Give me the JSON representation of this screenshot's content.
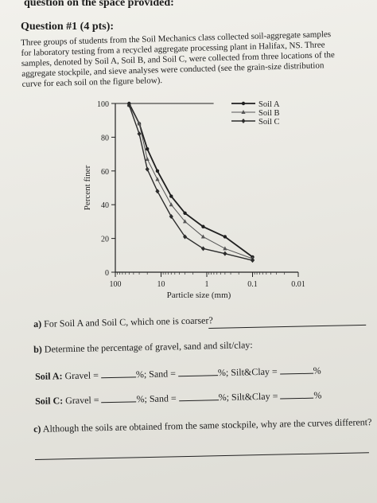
{
  "header": "question on the space provided:",
  "question_title": "Question #1 (4 pts):",
  "intro_lines": [
    "Three groups of students from the Soil Mechanics class collected soil-aggregate samples",
    "for laboratory testing from a recycled aggregate processing plant in Halifax, NS. Three",
    "samples, denoted by Soil A, Soil B, and Soil C, were collected from three locations of the",
    "aggregate stockpile, and sieve analyses were conducted (see the grain-size distribution",
    "curve for each soil on the figure below)."
  ],
  "chart_data": {
    "type": "line",
    "x_scale": "log",
    "x_reversed": true,
    "xlabel": "Particle size (mm)",
    "ylabel": "Percent finer",
    "xlim": [
      100,
      0.01
    ],
    "ylim": [
      0,
      100
    ],
    "x_ticks": [
      "100",
      "10",
      "1",
      "0.1",
      "0.01"
    ],
    "y_ticks": [
      "0",
      "20",
      "40",
      "60",
      "80",
      "100"
    ],
    "legend_position": "top-right",
    "series": [
      {
        "name": "Soil A",
        "x": [
          50,
          30,
          20,
          12,
          6,
          3,
          1.2,
          0.4,
          0.1
        ],
        "y": [
          100,
          88,
          73,
          60,
          45,
          35,
          27,
          21,
          9
        ]
      },
      {
        "name": "Soil B",
        "x": [
          50,
          30,
          20,
          12,
          6,
          3,
          1.2,
          0.4,
          0.1
        ],
        "y": [
          99,
          88,
          67,
          55,
          40,
          30,
          21,
          14,
          8
        ]
      },
      {
        "name": "Soil C",
        "x": [
          50,
          30,
          20,
          12,
          6,
          3,
          1.2,
          0.4,
          0.1
        ],
        "y": [
          99,
          82,
          61,
          48,
          33,
          21,
          14,
          11,
          7
        ]
      }
    ]
  },
  "question_a": {
    "label": "a)",
    "text": "For Soil A and Soil C, which one is coarser?"
  },
  "question_b": {
    "label": "b)",
    "text": "Determine the percentage of gravel, sand and silt/clay:"
  },
  "soil_a_row": {
    "label": "Soil A:",
    "gravel": "Gravel =",
    "sand": "%; Sand =",
    "silt": "%; Silt&Clay =",
    "end": "%"
  },
  "soil_c_row": {
    "label": "Soil C:",
    "gravel": "Gravel =",
    "sand": "%; Sand =",
    "silt": "%; Silt&Clay =",
    "end": "%"
  },
  "question_c": {
    "label": "c)",
    "text": "Although the soils are obtained from the same stockpile, why are the curves different?"
  }
}
